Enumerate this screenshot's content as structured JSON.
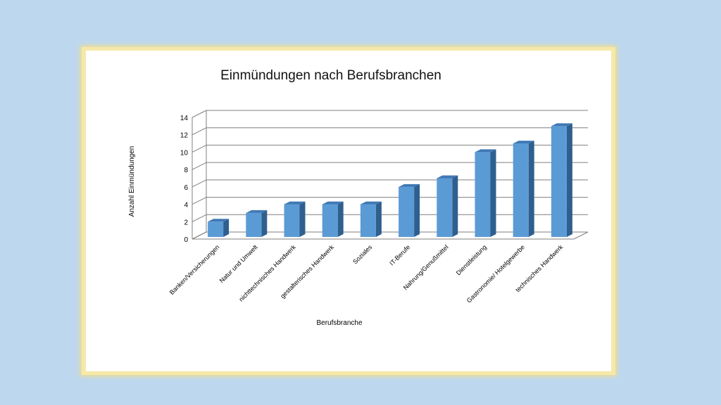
{
  "chart_data": {
    "type": "bar",
    "title": "Einmündungen nach Berufsbranchen",
    "xlabel": "Berufsbranche",
    "ylabel": "Anzahl Einmündungen",
    "categories": [
      "Banken/Versicherungen",
      "Natur und Umwelt",
      "nichttechnisches Handwerk",
      "gestalterisches Handwerk",
      "Soziales",
      "IT-Berufe",
      "Nahrung/Genußmittel",
      "Dienstleistung",
      "Gastronomie/ Hotelgewerbe",
      "technisches Handwerk"
    ],
    "values": [
      2,
      3,
      4,
      4,
      4,
      6,
      7,
      10,
      11,
      13
    ],
    "ylim": [
      0,
      14
    ],
    "yticks": [
      0,
      2,
      4,
      6,
      8,
      10,
      12,
      14
    ],
    "grid": true,
    "style": "3d-column",
    "colors": {
      "bar_front": "#5b9bd5",
      "bar_side": "#2e5f8f",
      "bar_top": "#3f78b4",
      "grid": "#7f7f7f"
    }
  }
}
